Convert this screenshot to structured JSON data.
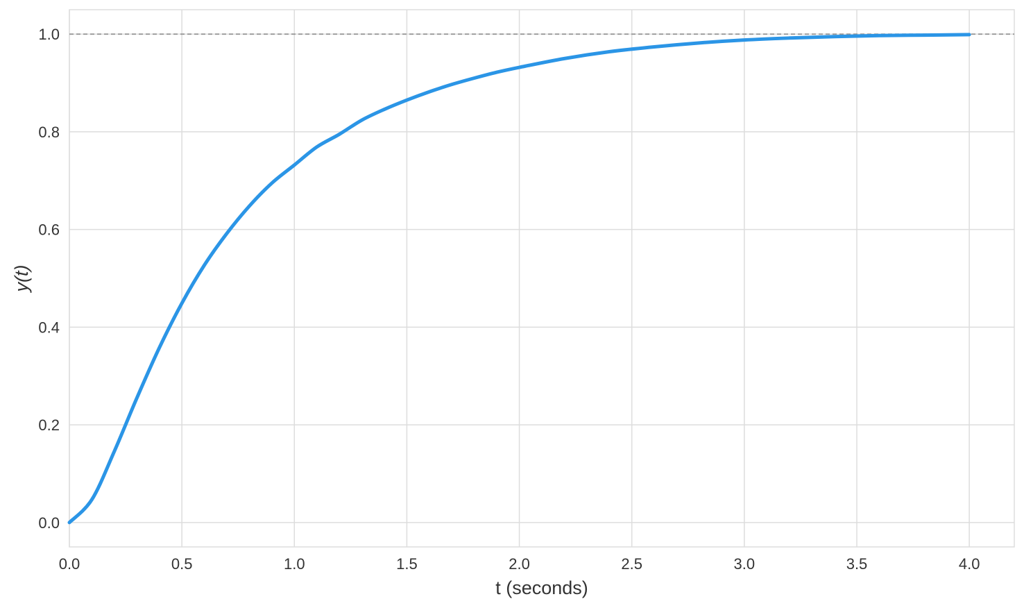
{
  "chart_data": {
    "type": "line",
    "title": "",
    "xlabel": "t (seconds)",
    "ylabel": "y(t)",
    "xlim": [
      0.0,
      4.2
    ],
    "ylim": [
      -0.05,
      1.05
    ],
    "xticks": [
      0.0,
      0.5,
      1.0,
      1.5,
      2.0,
      2.5,
      3.0,
      3.5,
      4.0
    ],
    "xtick_labels": [
      "0.0",
      "0.5",
      "1.0",
      "1.5",
      "2.0",
      "2.5",
      "3.0",
      "3.5",
      "4.0"
    ],
    "yticks": [
      0.0,
      0.2,
      0.4,
      0.6,
      0.8,
      1.0
    ],
    "ytick_labels": [
      "0.0",
      "0.2",
      "0.4",
      "0.6",
      "0.8",
      "1.0"
    ],
    "grid": true,
    "reference_line": {
      "y": 1.0,
      "style": "dashed",
      "color": "#999999"
    },
    "series": [
      {
        "color": "#2b95e6",
        "x": [
          0.0,
          0.1,
          0.2,
          0.3,
          0.4,
          0.5,
          0.6,
          0.7,
          0.8,
          0.9,
          1.0,
          1.1,
          1.2,
          1.3,
          1.4,
          1.5,
          1.6,
          1.7,
          1.8,
          1.9,
          2.0,
          2.2,
          2.4,
          2.6,
          2.8,
          3.0,
          3.2,
          3.4,
          3.6,
          3.8,
          4.0
        ],
        "y": [
          0.0,
          0.047,
          0.146,
          0.255,
          0.358,
          0.449,
          0.527,
          0.592,
          0.648,
          0.695,
          0.732,
          0.769,
          0.795,
          0.824,
          0.846,
          0.865,
          0.882,
          0.897,
          0.91,
          0.922,
          0.932,
          0.95,
          0.964,
          0.974,
          0.982,
          0.988,
          0.992,
          0.995,
          0.997,
          0.998,
          0.999
        ]
      }
    ]
  }
}
